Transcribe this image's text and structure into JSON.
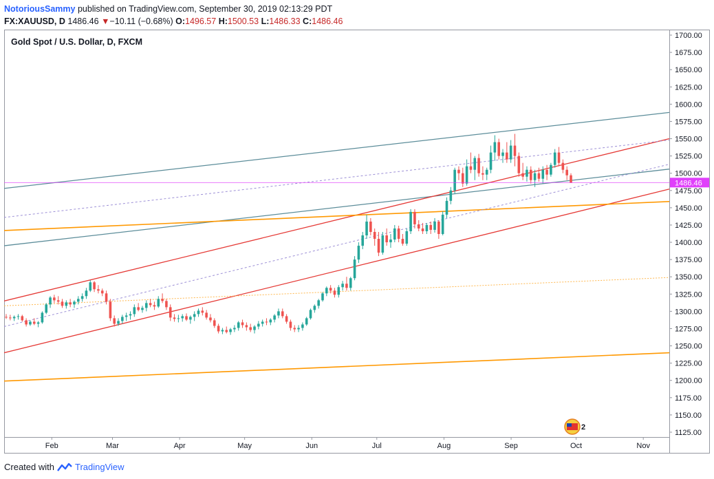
{
  "header": {
    "author": "NotoriousSammy",
    "published_text": "published on TradingView.com, September 30, 2019 02:13:29 PDT",
    "symbol": "FX:XAUUSD, D",
    "last": "1486.46",
    "change_arrow": "▼",
    "change": "−10.11 (−0.68%)",
    "open_label": "O:",
    "open": "1496.57",
    "high_label": "H:",
    "high": "1500.53",
    "low_label": "L:",
    "low": "1486.33",
    "close_label": "C:",
    "close": "1486.46"
  },
  "footer": {
    "created_with": "Created with",
    "brand": "TradingView"
  },
  "colors": {
    "up": "#26a69a",
    "down": "#ef5350",
    "price_line": "#e040fb",
    "teal_line": "#5b8c99",
    "red_line": "#e53935",
    "orange_line": "#ff9800",
    "lavender_dash": "#9c8fd6",
    "orange_dash": "#ffb74d"
  },
  "badge": {
    "text": "2",
    "icon": "us-flag-icon"
  },
  "chart_data": {
    "type": "candlestick",
    "title": "Gold Spot / U.S. Dollar, D, FXCM",
    "ylim": [
      1118,
      1708
    ],
    "y_ticks": [
      "1700.00",
      "1675.00",
      "1650.00",
      "1625.00",
      "1600.00",
      "1575.00",
      "1550.00",
      "1525.00",
      "1500.00",
      "1475.00",
      "1450.00",
      "1425.00",
      "1400.00",
      "1375.00",
      "1350.00",
      "1325.00",
      "1300.00",
      "1275.00",
      "1250.00",
      "1225.00",
      "1200.00",
      "1175.00",
      "1150.00",
      "1125.00"
    ],
    "x_ticks": [
      {
        "label": "Feb",
        "day": 22
      },
      {
        "label": "Mar",
        "day": 50
      },
      {
        "label": "Apr",
        "day": 81
      },
      {
        "label": "May",
        "day": 111
      },
      {
        "label": "Jun",
        "day": 142
      },
      {
        "label": "Jul",
        "day": 172
      },
      {
        "label": "Aug",
        "day": 203
      },
      {
        "label": "Sep",
        "day": 234
      },
      {
        "label": "Oct",
        "day": 264
      },
      {
        "label": "Nov",
        "day": 295
      }
    ],
    "x_range_days": [
      0,
      307
    ],
    "last_price": 1486.46,
    "last_price_label": "1486.46",
    "candles": [
      [
        1292,
        1296,
        1289,
        1291
      ],
      [
        1291,
        1295,
        1287,
        1290
      ],
      [
        1290,
        1294,
        1286,
        1292
      ],
      [
        1292,
        1296,
        1288,
        1293
      ],
      [
        1293,
        1295,
        1285,
        1287
      ],
      [
        1287,
        1290,
        1278,
        1281
      ],
      [
        1281,
        1287,
        1279,
        1285
      ],
      [
        1285,
        1290,
        1280,
        1282
      ],
      [
        1282,
        1286,
        1277,
        1284
      ],
      [
        1284,
        1300,
        1282,
        1298
      ],
      [
        1298,
        1312,
        1296,
        1310
      ],
      [
        1310,
        1322,
        1305,
        1320
      ],
      [
        1320,
        1324,
        1312,
        1316
      ],
      [
        1316,
        1322,
        1310,
        1314
      ],
      [
        1314,
        1318,
        1305,
        1308
      ],
      [
        1308,
        1316,
        1304,
        1313
      ],
      [
        1313,
        1318,
        1306,
        1310
      ],
      [
        1310,
        1316,
        1305,
        1314
      ],
      [
        1314,
        1322,
        1310,
        1318
      ],
      [
        1318,
        1326,
        1314,
        1322
      ],
      [
        1322,
        1334,
        1318,
        1330
      ],
      [
        1330,
        1345,
        1328,
        1342
      ],
      [
        1342,
        1344,
        1328,
        1332
      ],
      [
        1332,
        1338,
        1326,
        1330
      ],
      [
        1330,
        1333,
        1322,
        1326
      ],
      [
        1326,
        1330,
        1310,
        1314
      ],
      [
        1314,
        1318,
        1286,
        1290
      ],
      [
        1290,
        1294,
        1278,
        1282
      ],
      [
        1282,
        1290,
        1279,
        1286
      ],
      [
        1286,
        1295,
        1282,
        1292
      ],
      [
        1292,
        1298,
        1286,
        1294
      ],
      [
        1294,
        1300,
        1288,
        1296
      ],
      [
        1296,
        1310,
        1292,
        1306
      ],
      [
        1306,
        1312,
        1300,
        1302
      ],
      [
        1302,
        1308,
        1298,
        1305
      ],
      [
        1305,
        1316,
        1300,
        1312
      ],
      [
        1312,
        1318,
        1306,
        1309
      ],
      [
        1309,
        1314,
        1302,
        1307
      ],
      [
        1307,
        1322,
        1305,
        1318
      ],
      [
        1318,
        1326,
        1312,
        1315
      ],
      [
        1315,
        1318,
        1302,
        1306
      ],
      [
        1306,
        1310,
        1286,
        1291
      ],
      [
        1291,
        1296,
        1285,
        1289
      ],
      [
        1289,
        1295,
        1284,
        1290
      ],
      [
        1290,
        1296,
        1285,
        1293
      ],
      [
        1293,
        1297,
        1286,
        1288
      ],
      [
        1288,
        1294,
        1282,
        1292
      ],
      [
        1292,
        1300,
        1286,
        1296
      ],
      [
        1296,
        1304,
        1292,
        1301
      ],
      [
        1301,
        1306,
        1294,
        1298
      ],
      [
        1298,
        1302,
        1288,
        1291
      ],
      [
        1291,
        1296,
        1284,
        1287
      ],
      [
        1287,
        1290,
        1276,
        1279
      ],
      [
        1279,
        1282,
        1268,
        1271
      ],
      [
        1271,
        1276,
        1267,
        1273
      ],
      [
        1273,
        1278,
        1268,
        1270
      ],
      [
        1270,
        1276,
        1266,
        1274
      ],
      [
        1274,
        1280,
        1270,
        1276
      ],
      [
        1276,
        1286,
        1272,
        1284
      ],
      [
        1284,
        1288,
        1276,
        1280
      ],
      [
        1280,
        1284,
        1272,
        1277
      ],
      [
        1277,
        1282,
        1270,
        1273
      ],
      [
        1273,
        1280,
        1268,
        1278
      ],
      [
        1278,
        1286,
        1274,
        1282
      ],
      [
        1282,
        1288,
        1278,
        1285
      ],
      [
        1285,
        1290,
        1280,
        1284
      ],
      [
        1284,
        1290,
        1280,
        1288
      ],
      [
        1288,
        1296,
        1284,
        1294
      ],
      [
        1294,
        1304,
        1290,
        1300
      ],
      [
        1300,
        1304,
        1290,
        1293
      ],
      [
        1293,
        1296,
        1282,
        1285
      ],
      [
        1285,
        1288,
        1272,
        1276
      ],
      [
        1276,
        1280,
        1270,
        1274
      ],
      [
        1274,
        1280,
        1270,
        1276
      ],
      [
        1276,
        1284,
        1272,
        1281
      ],
      [
        1281,
        1292,
        1279,
        1290
      ],
      [
        1290,
        1304,
        1288,
        1302
      ],
      [
        1302,
        1310,
        1298,
        1308
      ],
      [
        1308,
        1318,
        1304,
        1316
      ],
      [
        1316,
        1328,
        1314,
        1326
      ],
      [
        1326,
        1336,
        1322,
        1334
      ],
      [
        1334,
        1338,
        1326,
        1330
      ],
      [
        1330,
        1334,
        1320,
        1324
      ],
      [
        1324,
        1338,
        1320,
        1335
      ],
      [
        1335,
        1344,
        1330,
        1340
      ],
      [
        1340,
        1350,
        1330,
        1334
      ],
      [
        1334,
        1350,
        1330,
        1348
      ],
      [
        1348,
        1380,
        1345,
        1375
      ],
      [
        1375,
        1400,
        1370,
        1395
      ],
      [
        1395,
        1415,
        1390,
        1410
      ],
      [
        1410,
        1440,
        1405,
        1430
      ],
      [
        1430,
        1435,
        1410,
        1415
      ],
      [
        1415,
        1420,
        1395,
        1405
      ],
      [
        1405,
        1415,
        1380,
        1385
      ],
      [
        1385,
        1415,
        1382,
        1410
      ],
      [
        1410,
        1420,
        1395,
        1400
      ],
      [
        1400,
        1412,
        1392,
        1404
      ],
      [
        1404,
        1425,
        1400,
        1420
      ],
      [
        1420,
        1424,
        1400,
        1405
      ],
      [
        1405,
        1412,
        1395,
        1398
      ],
      [
        1398,
        1420,
        1395,
        1416
      ],
      [
        1416,
        1448,
        1412,
        1444
      ],
      [
        1444,
        1448,
        1420,
        1426
      ],
      [
        1426,
        1432,
        1416,
        1420
      ],
      [
        1420,
        1428,
        1412,
        1416
      ],
      [
        1416,
        1428,
        1412,
        1425
      ],
      [
        1425,
        1430,
        1412,
        1418
      ],
      [
        1418,
        1435,
        1414,
        1430
      ],
      [
        1430,
        1432,
        1405,
        1412
      ],
      [
        1412,
        1445,
        1410,
        1440
      ],
      [
        1440,
        1465,
        1435,
        1460
      ],
      [
        1460,
        1480,
        1455,
        1475
      ],
      [
        1475,
        1508,
        1470,
        1505
      ],
      [
        1505,
        1510,
        1490,
        1500
      ],
      [
        1500,
        1508,
        1480,
        1485
      ],
      [
        1485,
        1520,
        1482,
        1510
      ],
      [
        1510,
        1530,
        1500,
        1505
      ],
      [
        1505,
        1525,
        1490,
        1522
      ],
      [
        1522,
        1528,
        1495,
        1500
      ],
      [
        1500,
        1510,
        1490,
        1498
      ],
      [
        1498,
        1508,
        1490,
        1505
      ],
      [
        1505,
        1540,
        1500,
        1530
      ],
      [
        1530,
        1555,
        1518,
        1545
      ],
      [
        1545,
        1550,
        1520,
        1525
      ],
      [
        1525,
        1535,
        1515,
        1530
      ],
      [
        1530,
        1545,
        1515,
        1520
      ],
      [
        1520,
        1548,
        1515,
        1540
      ],
      [
        1540,
        1557,
        1510,
        1525
      ],
      [
        1525,
        1530,
        1495,
        1500
      ],
      [
        1500,
        1515,
        1490,
        1495
      ],
      [
        1495,
        1510,
        1488,
        1505
      ],
      [
        1505,
        1510,
        1485,
        1490
      ],
      [
        1490,
        1505,
        1480,
        1500
      ],
      [
        1500,
        1508,
        1488,
        1492
      ],
      [
        1492,
        1510,
        1485,
        1505
      ],
      [
        1505,
        1512,
        1490,
        1498
      ],
      [
        1498,
        1515,
        1495,
        1512
      ],
      [
        1512,
        1535,
        1508,
        1530
      ],
      [
        1530,
        1538,
        1510,
        1515
      ],
      [
        1515,
        1520,
        1500,
        1505
      ],
      [
        1505,
        1510,
        1490,
        1497
      ],
      [
        1497,
        1500,
        1486,
        1486
      ]
    ],
    "annotations": {
      "teal_upper": [
        [
          0,
          1478
        ],
        [
          307,
          1588
        ]
      ],
      "teal_lower": [
        [
          0,
          1395
        ],
        [
          307,
          1506
        ]
      ],
      "red_upper": [
        [
          0,
          1315
        ],
        [
          307,
          1550
        ]
      ],
      "red_lower": [
        [
          0,
          1240
        ],
        [
          307,
          1477
        ]
      ],
      "orange_upper": [
        [
          0,
          1417
        ],
        [
          307,
          1459
        ]
      ],
      "orange_lower": [
        [
          0,
          1199
        ],
        [
          307,
          1240
        ]
      ],
      "lavender_dash_upper": [
        [
          0,
          1436
        ],
        [
          307,
          1548
        ]
      ],
      "lavender_dash_lower": [
        [
          0,
          1278
        ],
        [
          307,
          1513
        ]
      ],
      "orange_dash": [
        [
          0,
          1308
        ],
        [
          307,
          1349
        ]
      ]
    }
  }
}
